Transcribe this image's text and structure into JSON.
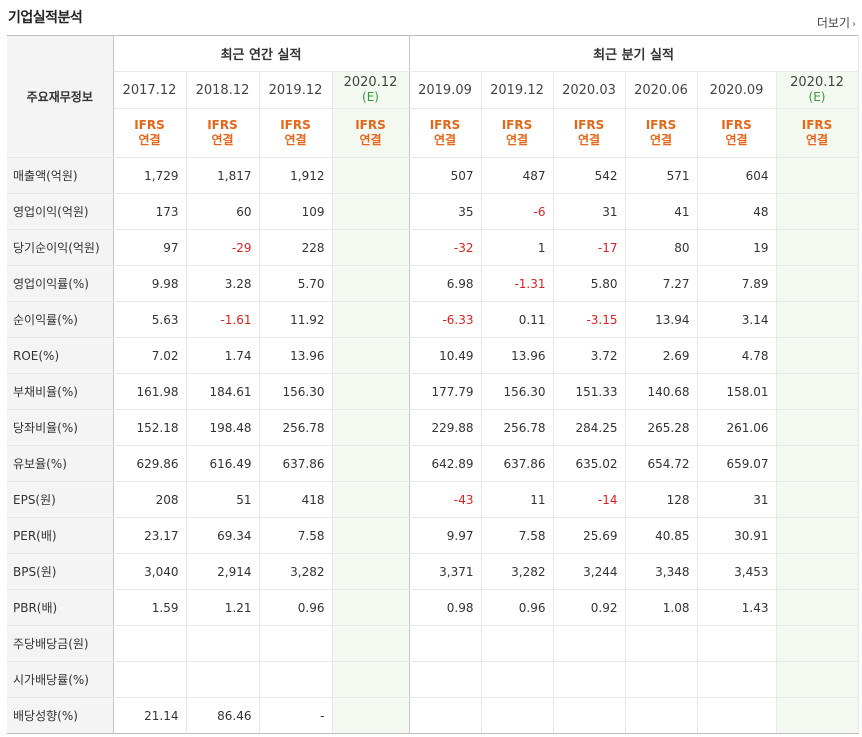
{
  "title": "기업실적분석",
  "more": "더보기",
  "header": {
    "row_label": "주요재무정보",
    "annual_group": "최근 연간 실적",
    "quarter_group": "최근 분기 실적",
    "periods": [
      "2017.12",
      "2018.12",
      "2019.12",
      "2020.12",
      "2019.09",
      "2019.12",
      "2020.03",
      "2020.06",
      "2020.09",
      "2020.12"
    ],
    "estimate_mark": "(E)",
    "ifrs_line1": "IFRS",
    "ifrs_line2": "연결"
  },
  "rows": [
    {
      "label": "매출액(억원)",
      "values": [
        "1,729",
        "1,817",
        "1,912",
        "",
        "507",
        "487",
        "542",
        "571",
        "604",
        ""
      ]
    },
    {
      "label": "영업이익(억원)",
      "values": [
        "173",
        "60",
        "109",
        "",
        "35",
        "-6",
        "31",
        "41",
        "48",
        ""
      ]
    },
    {
      "label": "당기순이익(억원)",
      "values": [
        "97",
        "-29",
        "228",
        "",
        "-32",
        "1",
        "-17",
        "80",
        "19",
        ""
      ]
    },
    {
      "label": "영업이익률(%)",
      "values": [
        "9.98",
        "3.28",
        "5.70",
        "",
        "6.98",
        "-1.31",
        "5.80",
        "7.27",
        "7.89",
        ""
      ]
    },
    {
      "label": "순이익률(%)",
      "values": [
        "5.63",
        "-1.61",
        "11.92",
        "",
        "-6.33",
        "0.11",
        "-3.15",
        "13.94",
        "3.14",
        ""
      ]
    },
    {
      "label": "ROE(%)",
      "values": [
        "7.02",
        "1.74",
        "13.96",
        "",
        "10.49",
        "13.96",
        "3.72",
        "2.69",
        "4.78",
        ""
      ]
    },
    {
      "label": "부채비율(%)",
      "values": [
        "161.98",
        "184.61",
        "156.30",
        "",
        "177.79",
        "156.30",
        "151.33",
        "140.68",
        "158.01",
        ""
      ]
    },
    {
      "label": "당좌비율(%)",
      "values": [
        "152.18",
        "198.48",
        "256.78",
        "",
        "229.88",
        "256.78",
        "284.25",
        "265.28",
        "261.06",
        ""
      ]
    },
    {
      "label": "유보율(%)",
      "values": [
        "629.86",
        "616.49",
        "637.86",
        "",
        "642.89",
        "637.86",
        "635.02",
        "654.72",
        "659.07",
        ""
      ]
    },
    {
      "label": "EPS(원)",
      "values": [
        "208",
        "51",
        "418",
        "",
        "-43",
        "11",
        "-14",
        "128",
        "31",
        ""
      ]
    },
    {
      "label": "PER(배)",
      "values": [
        "23.17",
        "69.34",
        "7.58",
        "",
        "9.97",
        "7.58",
        "25.69",
        "40.85",
        "30.91",
        ""
      ]
    },
    {
      "label": "BPS(원)",
      "values": [
        "3,040",
        "2,914",
        "3,282",
        "",
        "3,371",
        "3,282",
        "3,244",
        "3,348",
        "3,453",
        ""
      ]
    },
    {
      "label": "PBR(배)",
      "values": [
        "1.59",
        "1.21",
        "0.96",
        "",
        "0.98",
        "0.96",
        "0.92",
        "1.08",
        "1.43",
        ""
      ]
    },
    {
      "label": "주당배당금(원)",
      "values": [
        "",
        "",
        "",
        "",
        "",
        "",
        "",
        "",
        "",
        ""
      ]
    },
    {
      "label": "시가배당률(%)",
      "values": [
        "",
        "",
        "",
        "",
        "",
        "",
        "",
        "",
        "",
        ""
      ]
    },
    {
      "label": "배당성향(%)",
      "values": [
        "21.14",
        "86.46",
        "-",
        "",
        "",
        "",
        "",
        "",
        "",
        ""
      ]
    }
  ]
}
